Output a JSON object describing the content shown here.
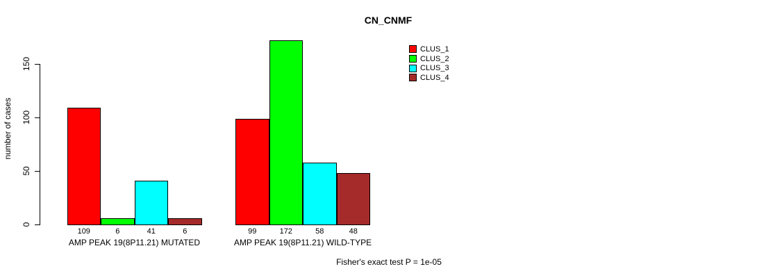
{
  "chart_data": {
    "type": "bar",
    "title": "CN_CNMF",
    "ylabel": "number of cases",
    "xlabel": "",
    "yticks": [
      0,
      50,
      100,
      150
    ],
    "ylim": [
      0,
      172
    ],
    "grid": false,
    "legend_position": "top-right",
    "categories": [
      "AMP PEAK 19(8P11.21) MUTATED",
      "AMP PEAK 19(8P11.21) WILD-TYPE"
    ],
    "series": [
      {
        "name": "CLUS_1",
        "color": "#ff0000",
        "values": [
          109,
          99
        ]
      },
      {
        "name": "CLUS_2",
        "color": "#00ff00",
        "values": [
          6,
          172
        ]
      },
      {
        "name": "CLUS_3",
        "color": "#00ffff",
        "values": [
          41,
          58
        ]
      },
      {
        "name": "CLUS_4",
        "color": "#a52a2a",
        "values": [
          6,
          48
        ]
      }
    ],
    "bar_value_labels": [
      109,
      6,
      41,
      6,
      99,
      172,
      58,
      48
    ],
    "annotation": "Fisher's exact test P = 1e-05",
    "text_color": "#000000",
    "background_color": "#ffffff"
  }
}
